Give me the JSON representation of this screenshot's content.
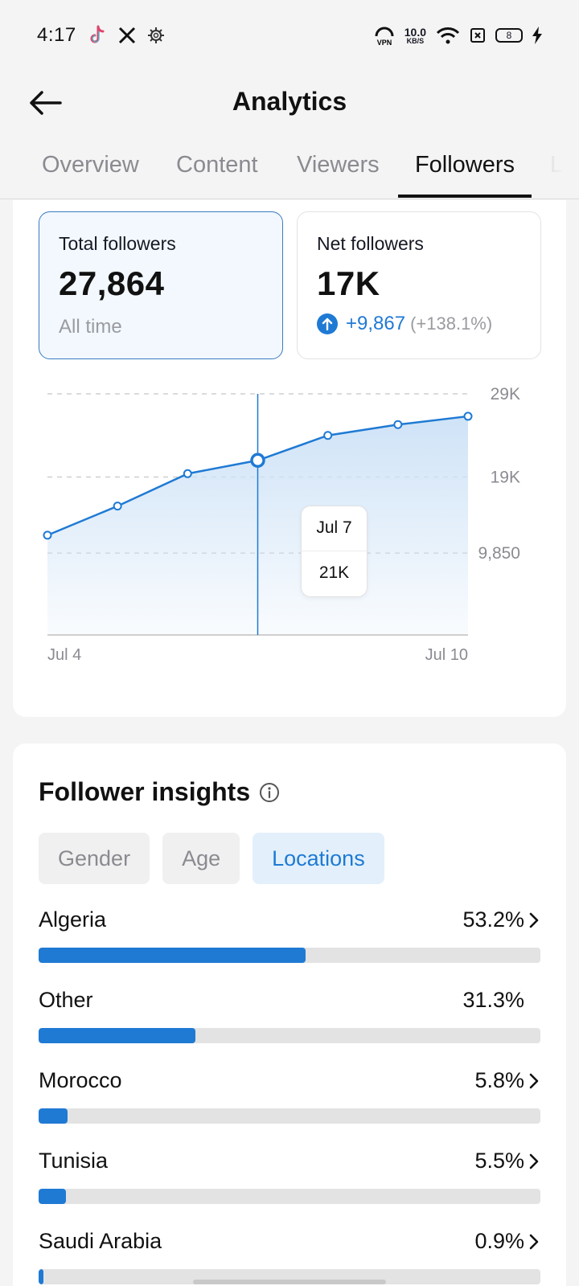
{
  "status_bar": {
    "time": "4:17",
    "apps": [
      "tiktok-icon",
      "x-icon",
      "settings-gear-icon"
    ],
    "vpn": "VPN",
    "speed_value": "10.0",
    "speed_unit": "KB/S",
    "battery": "8"
  },
  "header": {
    "title": "Analytics"
  },
  "tabs": [
    {
      "label": "Overview",
      "active": false
    },
    {
      "label": "Content",
      "active": false
    },
    {
      "label": "Viewers",
      "active": false
    },
    {
      "label": "Followers",
      "active": true
    },
    {
      "label": "Li",
      "active": false
    }
  ],
  "stats": {
    "total": {
      "label": "Total followers",
      "value": "27,864",
      "sub": "All time"
    },
    "net": {
      "label": "Net followers",
      "value": "17K",
      "change": "+9,867",
      "change_pct": "(+138.1%)"
    }
  },
  "chart_data": {
    "type": "area",
    "x_start_label": "Jul 4",
    "x_end_label": "Jul 10",
    "x": [
      "Jul 4",
      "Jul 5",
      "Jul 6",
      "Jul 7",
      "Jul 8",
      "Jul 9",
      "Jul 10"
    ],
    "values": [
      12000,
      15500,
      19400,
      21000,
      24000,
      25300,
      26300
    ],
    "y_ticks": [
      {
        "value": 29000,
        "label": "29K"
      },
      {
        "value": 19000,
        "label": "19K"
      },
      {
        "value": 9850,
        "label": "9,850"
      }
    ],
    "ylim": [
      0,
      29000
    ],
    "grid": true,
    "highlight": {
      "index": 3,
      "date": "Jul 7",
      "value": "21K"
    },
    "colors": {
      "line": "#1f7ad4",
      "fill": "#cfe3f7"
    }
  },
  "insights": {
    "title": "Follower insights",
    "chips": [
      {
        "label": "Gender",
        "active": false
      },
      {
        "label": "Age",
        "active": false
      },
      {
        "label": "Locations",
        "active": true
      }
    ],
    "locations": [
      {
        "name": "Algeria",
        "pct": "53.2%",
        "value": 53.2,
        "chevron": true
      },
      {
        "name": "Other",
        "pct": "31.3%",
        "value": 31.3,
        "chevron": false
      },
      {
        "name": "Morocco",
        "pct": "5.8%",
        "value": 5.8,
        "chevron": true
      },
      {
        "name": "Tunisia",
        "pct": "5.5%",
        "value": 5.5,
        "chevron": true
      },
      {
        "name": "Saudi Arabia",
        "pct": "0.9%",
        "value": 0.9,
        "chevron": true
      }
    ]
  },
  "colors": {
    "accent": "#1f7ad4",
    "background": "#f4f4f4"
  }
}
